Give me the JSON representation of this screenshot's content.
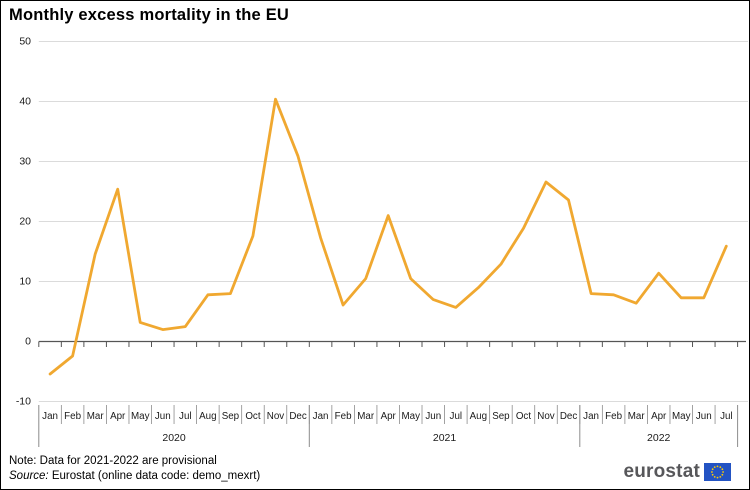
{
  "title": "Monthly excess mortality in the EU",
  "footer": {
    "note": "Note: Data for 2021-2022 are provisional",
    "source_label": "Source:",
    "source_rest": " Eurostat (online data code: demo_mexrt)"
  },
  "logo": {
    "wordmark": "eurostat",
    "flag": "eu-flag"
  },
  "colors": {
    "line": "#F0A830",
    "gridline": "#DBDBDB",
    "zero_axis": "#555555",
    "separator": "#8C8C8C",
    "tick_text": "#1A1A1A",
    "title_text": "#000000",
    "logo_text": "#57575A",
    "flag_blue": "#2353C3",
    "flag_stars": "#FFCC00"
  },
  "chart_data": {
    "type": "line",
    "title": "Monthly excess mortality in the EU",
    "unit": "% excess mortality",
    "ylim": [
      -10,
      50
    ],
    "yticks": [
      50,
      40,
      30,
      20,
      10,
      0,
      -10
    ],
    "grid": true,
    "legend_position": "none",
    "x_labels": [
      "Jan",
      "Feb",
      "Mar",
      "Apr",
      "May",
      "Jun",
      "Jul",
      "Aug",
      "Sep",
      "Oct",
      "Nov",
      "Dec",
      "Jan",
      "Feb",
      "Mar",
      "Apr",
      "May",
      "Jun",
      "Jul",
      "Aug",
      "Sep",
      "Oct",
      "Nov",
      "Dec",
      "Jan",
      "Feb",
      "Mar",
      "Apr",
      "May",
      "Jun",
      "Jul"
    ],
    "year_groups": [
      {
        "label": "2020",
        "months": 12
      },
      {
        "label": "2021",
        "months": 12
      },
      {
        "label": "2022",
        "months": 7
      }
    ],
    "series": [
      {
        "name": "EU monthly excess mortality (%)",
        "values": [
          -5.5,
          -2.5,
          14.5,
          25.3,
          3.1,
          1.9,
          2.4,
          7.7,
          7.9,
          17.5,
          40.3,
          30.8,
          17.2,
          6.0,
          10.4,
          20.9,
          10.4,
          6.9,
          5.6,
          8.9,
          12.8,
          18.8,
          26.5,
          23.5,
          7.9,
          7.7,
          6.3,
          11.3,
          7.2,
          7.2,
          15.8
        ]
      }
    ]
  }
}
